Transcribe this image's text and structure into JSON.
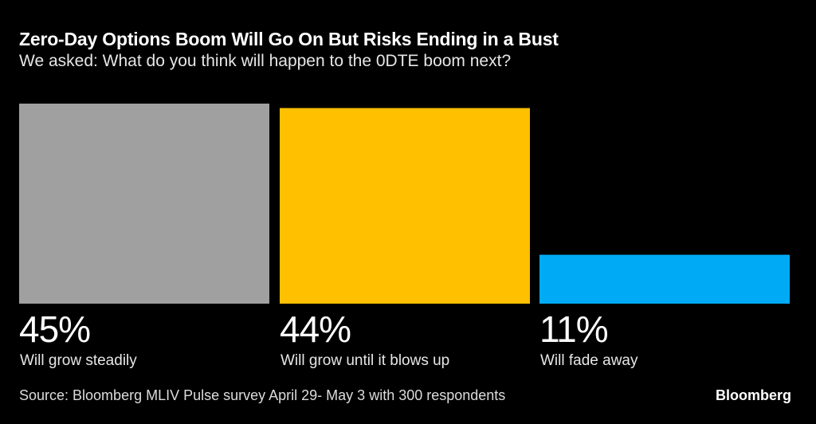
{
  "chart_data": {
    "type": "bar",
    "title": "Zero-Day Options Boom Will Go On But Risks Ending in a Bust",
    "subtitle": "We asked: What do you think will happen to the 0DTE boom next?",
    "categories": [
      "Will grow steadily",
      "Will grow until it blows up",
      "Will fade away"
    ],
    "values": [
      45,
      44,
      11
    ],
    "value_labels": [
      "45%",
      "44%",
      "11%"
    ],
    "colors": [
      "#a0a0a0",
      "#ffc000",
      "#00aaf5"
    ],
    "ylim": [
      0,
      45
    ],
    "grid": false,
    "source": "Source: Bloomberg MLIV Pulse survey April 29- May 3 with 300 respondents"
  },
  "logo": "Bloomberg"
}
